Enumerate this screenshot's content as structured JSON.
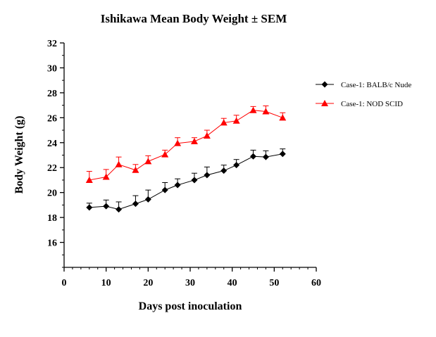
{
  "chart_data": {
    "type": "line",
    "title": "Ishikawa Mean Body Weight ± SEM",
    "xlabel": "Days post inoculation",
    "ylabel": "Body Weight (g)",
    "xlim": [
      0,
      60
    ],
    "ylim": [
      14,
      32
    ],
    "x_ticks": [
      "0",
      "10",
      "20",
      "30",
      "40",
      "50",
      "60"
    ],
    "y_ticks": [
      "16",
      "18",
      "20",
      "22",
      "24",
      "26",
      "28",
      "30",
      "32"
    ],
    "grid": false,
    "legend_position": "right",
    "x": [
      6,
      10,
      13,
      17,
      20,
      24,
      27,
      31,
      34,
      38,
      41,
      45,
      48,
      52
    ],
    "series": [
      {
        "name": "Case-1: BALB/c Nude",
        "marker": "diamond",
        "color": "#000000",
        "values": [
          18.8,
          18.9,
          18.65,
          19.1,
          19.45,
          20.2,
          20.6,
          21.0,
          21.4,
          21.75,
          22.2,
          22.9,
          22.85,
          23.1
        ],
        "sem": [
          0.35,
          0.5,
          0.6,
          0.65,
          0.75,
          0.6,
          0.5,
          0.55,
          0.65,
          0.45,
          0.45,
          0.5,
          0.5,
          0.4
        ]
      },
      {
        "name": "Case-1: NOD SCID",
        "marker": "triangle",
        "color": "#ff0000",
        "values": [
          21.0,
          21.25,
          22.25,
          21.8,
          22.5,
          23.05,
          23.95,
          24.1,
          24.55,
          25.6,
          25.75,
          26.6,
          26.5,
          26.0
        ],
        "sem": [
          0.7,
          0.6,
          0.6,
          0.45,
          0.45,
          0.35,
          0.45,
          0.3,
          0.45,
          0.35,
          0.45,
          0.3,
          0.45,
          0.4
        ]
      }
    ]
  }
}
